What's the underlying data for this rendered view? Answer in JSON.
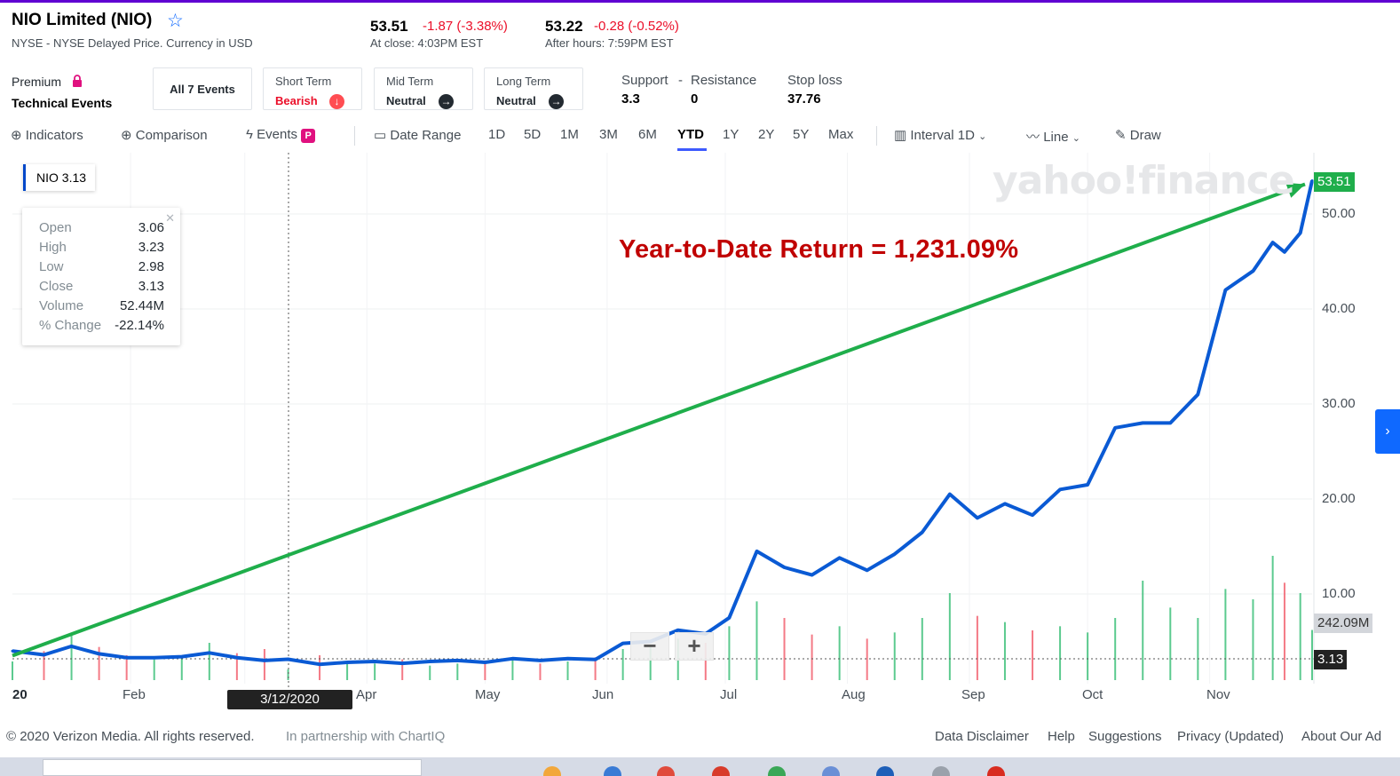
{
  "header": {
    "title": "NIO Limited (NIO)",
    "subtitle": "NYSE - NYSE Delayed Price. Currency in USD",
    "close_price": "53.51",
    "close_change": "-1.87 (-3.38%)",
    "close_time": "At close: 4:03PM EST",
    "after_price": "53.22",
    "after_change": "-0.28 (-0.52%)",
    "after_time": "After hours: 7:59PM EST"
  },
  "events": {
    "premium_label": "Premium",
    "technical_label": "Technical Events",
    "all_events": "All 7 Events",
    "short_term_label": "Short Term",
    "short_term_value": "Bearish",
    "mid_term_label": "Mid Term",
    "mid_term_value": "Neutral",
    "long_term_label": "Long Term",
    "long_term_value": "Neutral",
    "support_label": "Support",
    "support_dash": "-",
    "resistance_label": "Resistance",
    "support_value": "3.3",
    "resistance_value": "0",
    "stoploss_label": "Stop loss",
    "stoploss_value": "37.76"
  },
  "toolbar": {
    "indicators": "Indicators",
    "comparison": "Comparison",
    "events": "Events",
    "date_range": "Date Range",
    "ranges": [
      "1D",
      "5D",
      "1M",
      "3M",
      "6M",
      "YTD",
      "1Y",
      "2Y",
      "5Y",
      "Max"
    ],
    "active_range": "YTD",
    "interval": "Interval",
    "interval_value": "1D",
    "line": "Line",
    "draw": "Draw"
  },
  "tooltip": {
    "legend": "NIO 3.13",
    "rows": [
      {
        "label": "Open",
        "value": "3.06"
      },
      {
        "label": "High",
        "value": "3.23"
      },
      {
        "label": "Low",
        "value": "2.98"
      },
      {
        "label": "Close",
        "value": "3.13"
      },
      {
        "label": "Volume",
        "value": "52.44M"
      },
      {
        "label": "% Change",
        "value": "-22.14%"
      }
    ],
    "crosshair_date": "3/12/2020"
  },
  "annotation": "Year-to-Date Return = 1,231.09%",
  "watermark": "yahoo!finance",
  "badges": {
    "last_price": "53.51",
    "volume": "242.09M",
    "crosshair_price": "3.13"
  },
  "colors": {
    "price_line": "#0a5ad4",
    "trend_arrow": "#1fae4b",
    "volume_up": "#26b86a",
    "volume_down": "#f04d5e",
    "accent": "#0f69ff",
    "loss": "#eb0f29"
  },
  "footer": {
    "copyright": "© 2020 Verizon Media. All rights reserved.",
    "partner": "In partnership with ChartIQ",
    "links": [
      "Data Disclaimer",
      "Help",
      "Suggestions",
      "Privacy (Updated)",
      "About Our Ad"
    ]
  },
  "chart_data": {
    "type": "line",
    "title": "",
    "xlabel": "",
    "ylabel": "",
    "x_ticks": [
      "20",
      "Feb",
      "Apr",
      "May",
      "Jun",
      "Jul",
      "Aug",
      "Sep",
      "Oct",
      "Nov"
    ],
    "y_ticks": [
      "10.00",
      "20.00",
      "30.00",
      "40.00",
      "50.00"
    ],
    "ylim": [
      0,
      57
    ],
    "grid": true,
    "series": [
      {
        "name": "NIO",
        "x": [
          "2020-01-02",
          "2020-01-10",
          "2020-01-17",
          "2020-01-24",
          "2020-01-31",
          "2020-02-07",
          "2020-02-14",
          "2020-02-21",
          "2020-02-28",
          "2020-03-06",
          "2020-03-12",
          "2020-03-20",
          "2020-03-27",
          "2020-04-03",
          "2020-04-10",
          "2020-04-17",
          "2020-04-24",
          "2020-05-01",
          "2020-05-08",
          "2020-05-15",
          "2020-05-22",
          "2020-05-29",
          "2020-06-05",
          "2020-06-12",
          "2020-06-19",
          "2020-06-26",
          "2020-07-02",
          "2020-07-09",
          "2020-07-16",
          "2020-07-23",
          "2020-07-30",
          "2020-08-06",
          "2020-08-13",
          "2020-08-20",
          "2020-08-27",
          "2020-09-03",
          "2020-09-10",
          "2020-09-17",
          "2020-09-24",
          "2020-10-01",
          "2020-10-08",
          "2020-10-15",
          "2020-10-22",
          "2020-10-29",
          "2020-11-05",
          "2020-11-12",
          "2020-11-17",
          "2020-11-20",
          "2020-11-24",
          "2020-11-27"
        ],
        "values": [
          4.0,
          3.6,
          4.5,
          3.7,
          3.3,
          3.3,
          3.4,
          3.8,
          3.3,
          3.0,
          3.13,
          2.6,
          2.8,
          2.9,
          2.7,
          2.9,
          3.0,
          2.8,
          3.2,
          3.0,
          3.2,
          3.1,
          4.8,
          5.0,
          6.2,
          5.8,
          7.5,
          14.5,
          12.8,
          12.0,
          13.8,
          12.5,
          14.2,
          16.5,
          20.5,
          18.0,
          19.5,
          18.3,
          21.0,
          21.5,
          27.5,
          28.0,
          28.0,
          31.0,
          42.0,
          44.0,
          47.0,
          46.0,
          48.0,
          53.51
        ]
      },
      {
        "name": "Volume",
        "values_millions": [
          90,
          140,
          220,
          160,
          120,
          100,
          110,
          180,
          130,
          150,
          52,
          120,
          90,
          80,
          100,
          70,
          80,
          90,
          100,
          80,
          90,
          110,
          150,
          170,
          200,
          180,
          260,
          380,
          300,
          220,
          260,
          200,
          230,
          300,
          420,
          310,
          280,
          240,
          260,
          230,
          300,
          480,
          350,
          300,
          440,
          390,
          600,
          470,
          420,
          242
        ]
      }
    ],
    "trend_line": {
      "from": {
        "x": "2020-01-02",
        "y": 3.13
      },
      "to": {
        "x": "2020-11-27",
        "y": 53.51
      }
    }
  }
}
